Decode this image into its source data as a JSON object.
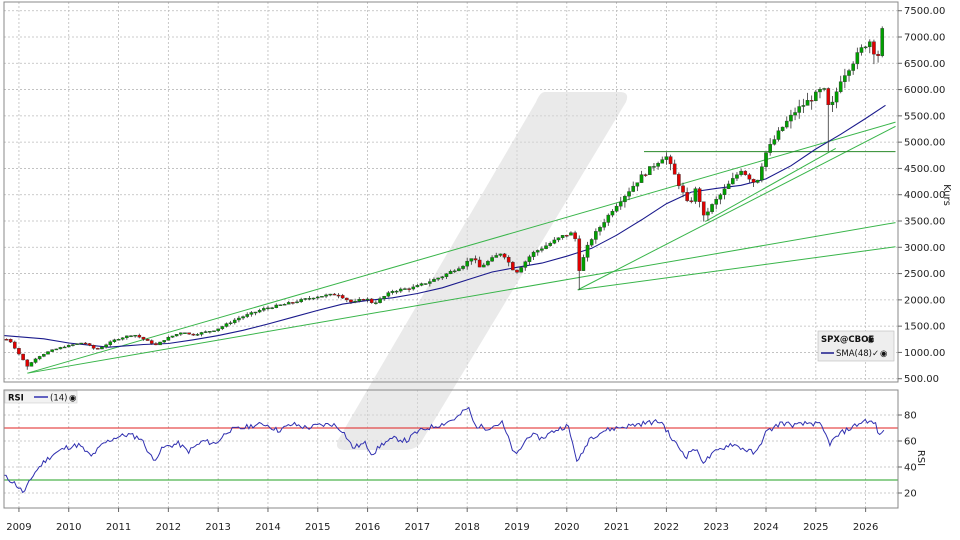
{
  "chart_data": [
    {
      "type": "candlestick",
      "instrument": "SPX@CBOE",
      "ylabel": "Kurs",
      "ylim": [
        0,
        7600
      ],
      "yticks": [
        "500.00",
        "1000.00",
        "1500.00",
        "2000.00",
        "2500.00",
        "3000.00",
        "3500.00",
        "4000.00",
        "4500.00",
        "5000.00",
        "5500.00",
        "6000.00",
        "6500.00",
        "7000.00",
        "7500.00"
      ],
      "xticks": [
        "2009",
        "2010",
        "2011",
        "2012",
        "2013",
        "2014",
        "2015",
        "2016",
        "2017",
        "2018",
        "2019",
        "2020",
        "2021",
        "2022",
        "2023",
        "2024",
        "2025",
        "2026"
      ],
      "xlim": [
        2008.7,
        2026.65
      ],
      "grid": true,
      "bull_color": "#00a000",
      "bear_color": "#e00000",
      "sma_color": "#1a1a8c",
      "trendline_color": "#39b54a",
      "legend": {
        "symbol": "SPX@CBOE",
        "indicator": "SMA(48)"
      },
      "anchors": [
        [
          2008.8,
          1250
        ],
        [
          2009.17,
          735
        ],
        [
          2009.35,
          900
        ],
        [
          2009.6,
          1020
        ],
        [
          2009.9,
          1110
        ],
        [
          2010.3,
          1190
        ],
        [
          2010.55,
          1050
        ],
        [
          2010.95,
          1250
        ],
        [
          2011.3,
          1345
        ],
        [
          2011.75,
          1140
        ],
        [
          2011.95,
          1260
        ],
        [
          2012.3,
          1400
        ],
        [
          2012.45,
          1330
        ],
        [
          2012.95,
          1430
        ],
        [
          2013.4,
          1650
        ],
        [
          2013.95,
          1840
        ],
        [
          2014.4,
          1930
        ],
        [
          2014.95,
          2060
        ],
        [
          2015.4,
          2110
        ],
        [
          2015.7,
          1940
        ],
        [
          2015.95,
          2040
        ],
        [
          2016.12,
          1930
        ],
        [
          2016.5,
          2170
        ],
        [
          2016.95,
          2240
        ],
        [
          2017.5,
          2450
        ],
        [
          2017.95,
          2680
        ],
        [
          2018.1,
          2820
        ],
        [
          2018.25,
          2620
        ],
        [
          2018.7,
          2910
        ],
        [
          2018.97,
          2510
        ],
        [
          2019.3,
          2880
        ],
        [
          2019.95,
          3230
        ],
        [
          2020.15,
          3280
        ],
        [
          2020.25,
          2580
        ],
        [
          2020.45,
          3100
        ],
        [
          2020.95,
          3760
        ],
        [
          2021.5,
          4350
        ],
        [
          2021.98,
          4760
        ],
        [
          2022.25,
          4200
        ],
        [
          2022.45,
          3780
        ],
        [
          2022.6,
          4130
        ],
        [
          2022.75,
          3580
        ],
        [
          2022.95,
          3840
        ],
        [
          2023.5,
          4480
        ],
        [
          2023.8,
          4200
        ],
        [
          2023.98,
          4770
        ],
        [
          2024.3,
          5250
        ],
        [
          2024.6,
          5600
        ],
        [
          2024.98,
          5880
        ],
        [
          2025.15,
          6030
        ],
        [
          2025.28,
          5570
        ],
        [
          2025.5,
          6200
        ],
        [
          2025.98,
          6850
        ],
        [
          2026.12,
          6950
        ],
        [
          2026.22,
          6500
        ],
        [
          2026.35,
          7200
        ]
      ],
      "lows_highlighted": [
        [
          2009.17,
          670
        ],
        [
          2020.22,
          2190
        ],
        [
          2022.78,
          3490
        ],
        [
          2025.27,
          4830
        ]
      ],
      "sma": [
        [
          2008.7,
          1320
        ],
        [
          2009.5,
          1260
        ],
        [
          2010.0,
          1180
        ],
        [
          2010.8,
          1100
        ],
        [
          2011.5,
          1150
        ],
        [
          2012.0,
          1170
        ],
        [
          2012.5,
          1240
        ],
        [
          2013.0,
          1320
        ],
        [
          2013.5,
          1420
        ],
        [
          2014.0,
          1540
        ],
        [
          2014.5,
          1670
        ],
        [
          2015.0,
          1800
        ],
        [
          2015.5,
          1920
        ],
        [
          2016.0,
          1990
        ],
        [
          2016.5,
          2040
        ],
        [
          2017.0,
          2120
        ],
        [
          2017.5,
          2230
        ],
        [
          2018.0,
          2380
        ],
        [
          2018.5,
          2530
        ],
        [
          2019.0,
          2620
        ],
        [
          2019.5,
          2700
        ],
        [
          2020.0,
          2830
        ],
        [
          2020.5,
          2980
        ],
        [
          2021.0,
          3230
        ],
        [
          2021.5,
          3520
        ],
        [
          2022.0,
          3830
        ],
        [
          2022.5,
          4050
        ],
        [
          2023.0,
          4120
        ],
        [
          2023.5,
          4180
        ],
        [
          2024.0,
          4300
        ],
        [
          2024.5,
          4550
        ],
        [
          2025.0,
          4870
        ],
        [
          2025.5,
          5150
        ],
        [
          2026.0,
          5450
        ],
        [
          2026.4,
          5700
        ]
      ],
      "trendlines": [
        {
          "from": [
            2009.17,
            605
          ],
          "to": [
            2026.6,
            5380
          ]
        },
        {
          "from": [
            2009.17,
            605
          ],
          "to": [
            2026.6,
            3470
          ]
        },
        {
          "from": [
            2020.22,
            2190
          ],
          "to": [
            2026.6,
            3010
          ]
        },
        {
          "from": [
            2020.22,
            2190
          ],
          "to": [
            2026.6,
            5300
          ]
        },
        {
          "from": [
            2022.78,
            3490
          ],
          "to": [
            2025.4,
            4880
          ]
        },
        {
          "from": [
            2021.55,
            4820
          ],
          "to": [
            2026.6,
            4820
          ]
        }
      ]
    },
    {
      "type": "line",
      "indicator": "RSI",
      "period": "(14)",
      "ylabel": "RSI",
      "ylim": [
        10,
        92
      ],
      "yticks": [
        "20",
        "40",
        "60",
        "80"
      ],
      "levels": [
        {
          "value": 70,
          "color": "#e02020"
        },
        {
          "value": 30,
          "color": "#20a020"
        }
      ],
      "line_color": "#3030b0",
      "values": [
        [
          2008.7,
          33
        ],
        [
          2008.9,
          28
        ],
        [
          2009.1,
          20
        ],
        [
          2009.3,
          35
        ],
        [
          2009.5,
          44
        ],
        [
          2009.7,
          50
        ],
        [
          2009.95,
          55
        ],
        [
          2010.2,
          57
        ],
        [
          2010.45,
          48
        ],
        [
          2010.7,
          58
        ],
        [
          2010.95,
          63
        ],
        [
          2011.2,
          65
        ],
        [
          2011.45,
          62
        ],
        [
          2011.7,
          45
        ],
        [
          2011.9,
          55
        ],
        [
          2012.2,
          58
        ],
        [
          2012.4,
          52
        ],
        [
          2012.7,
          60
        ],
        [
          2012.95,
          58
        ],
        [
          2013.2,
          68
        ],
        [
          2013.5,
          70
        ],
        [
          2013.7,
          72
        ],
        [
          2013.95,
          73
        ],
        [
          2014.2,
          68
        ],
        [
          2014.5,
          73
        ],
        [
          2014.8,
          70
        ],
        [
          2015.0,
          72
        ],
        [
          2015.3,
          73
        ],
        [
          2015.5,
          68
        ],
        [
          2015.7,
          55
        ],
        [
          2015.95,
          58
        ],
        [
          2016.1,
          50
        ],
        [
          2016.3,
          58
        ],
        [
          2016.55,
          62
        ],
        [
          2016.8,
          60
        ],
        [
          2016.95,
          66
        ],
        [
          2017.2,
          70
        ],
        [
          2017.5,
          73
        ],
        [
          2017.8,
          78
        ],
        [
          2018.02,
          86
        ],
        [
          2018.15,
          72
        ],
        [
          2018.4,
          70
        ],
        [
          2018.7,
          74
        ],
        [
          2018.97,
          48
        ],
        [
          2019.25,
          65
        ],
        [
          2019.5,
          62
        ],
        [
          2019.75,
          68
        ],
        [
          2020.02,
          72
        ],
        [
          2020.22,
          43
        ],
        [
          2020.45,
          62
        ],
        [
          2020.75,
          68
        ],
        [
          2021.0,
          70
        ],
        [
          2021.3,
          72
        ],
        [
          2021.6,
          74
        ],
        [
          2021.9,
          75
        ],
        [
          2022.1,
          62
        ],
        [
          2022.4,
          48
        ],
        [
          2022.55,
          55
        ],
        [
          2022.75,
          44
        ],
        [
          2023.0,
          52
        ],
        [
          2023.3,
          58
        ],
        [
          2023.55,
          54
        ],
        [
          2023.8,
          50
        ],
        [
          2023.98,
          66
        ],
        [
          2024.3,
          74
        ],
        [
          2024.6,
          72
        ],
        [
          2024.9,
          74
        ],
        [
          2025.1,
          72
        ],
        [
          2025.28,
          58
        ],
        [
          2025.5,
          66
        ],
        [
          2025.8,
          72
        ],
        [
          2026.0,
          76
        ],
        [
          2026.2,
          73
        ],
        [
          2026.28,
          63
        ],
        [
          2026.4,
          72
        ]
      ]
    }
  ],
  "watermark": "/"
}
